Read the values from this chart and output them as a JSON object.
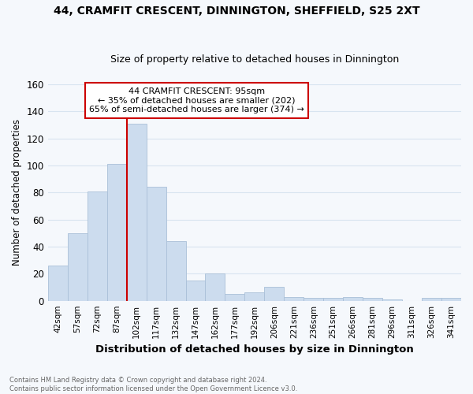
{
  "title": "44, CRAMFIT CRESCENT, DINNINGTON, SHEFFIELD, S25 2XT",
  "subtitle": "Size of property relative to detached houses in Dinnington",
  "xlabel": "Distribution of detached houses by size in Dinnington",
  "ylabel": "Number of detached properties",
  "bar_color": "#ccdcee",
  "bar_edgecolor": "#aac0d8",
  "categories": [
    "42sqm",
    "57sqm",
    "72sqm",
    "87sqm",
    "102sqm",
    "117sqm",
    "132sqm",
    "147sqm",
    "162sqm",
    "177sqm",
    "192sqm",
    "206sqm",
    "221sqm",
    "236sqm",
    "251sqm",
    "266sqm",
    "281sqm",
    "296sqm",
    "311sqm",
    "326sqm",
    "341sqm"
  ],
  "values": [
    26,
    50,
    81,
    101,
    131,
    84,
    44,
    15,
    20,
    5,
    6,
    10,
    3,
    2,
    2,
    3,
    2,
    1,
    0,
    2,
    2
  ],
  "vline_color": "#cc0000",
  "annotation_line1": "44 CRAMFIT CRESCENT: 95sqm",
  "annotation_line2": "← 35% of detached houses are smaller (202)",
  "annotation_line3": "65% of semi-detached houses are larger (374) →",
  "annotation_box_color": "#cc0000",
  "ylim": [
    0,
    160
  ],
  "yticks": [
    0,
    20,
    40,
    60,
    80,
    100,
    120,
    140,
    160
  ],
  "footer_line1": "Contains HM Land Registry data © Crown copyright and database right 2024.",
  "footer_line2": "Contains public sector information licensed under the Open Government Licence v3.0.",
  "background_color": "#f5f8fc",
  "grid_color": "#d8e4f0"
}
